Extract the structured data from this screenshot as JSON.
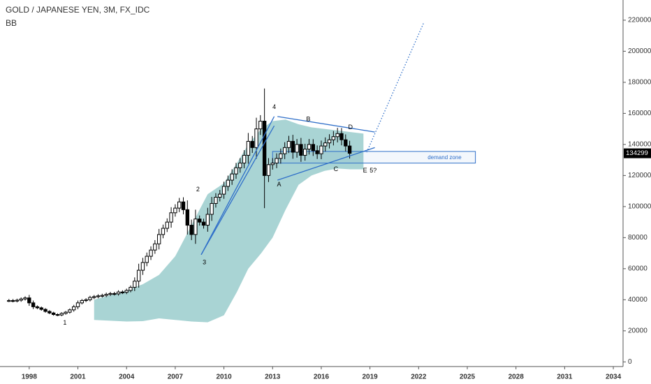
{
  "header": {
    "title": "GOLD / JAPANESE YEN, 3M, FX_IDC",
    "indicator": "BB"
  },
  "colors": {
    "band_fill": "#a9d4d4",
    "line_blue": "#2f6fc9",
    "candle_up": "#ffffff",
    "candle_down": "#000000",
    "axis_text": "#333333",
    "price_tag_bg": "#000000",
    "price_tag_text": "#ffffff"
  },
  "chart_data": {
    "type": "candlestick",
    "title": "GOLD / JAPANESE YEN, 3M, FX_IDC",
    "xlabel": "",
    "ylabel": "",
    "grid": false,
    "xlim": [
      1996.2,
      2034.6
    ],
    "ylim": [
      -3000,
      233000
    ],
    "x_ticks": [
      "1998",
      "2001",
      "2004",
      "2007",
      "2010",
      "2013",
      "2016",
      "2019",
      "2022",
      "2025",
      "2028",
      "2031",
      "2034"
    ],
    "x_tick_values": [
      1998,
      2001,
      2004,
      2007,
      2010,
      2013,
      2016,
      2019,
      2022,
      2025,
      2028,
      2031,
      2034
    ],
    "y_ticks": [
      "0",
      "20000",
      "40000",
      "60000",
      "80000",
      "100000",
      "120000",
      "140000",
      "160000",
      "180000",
      "200000",
      "220000"
    ],
    "y_tick_values": [
      0,
      20000,
      40000,
      60000,
      80000,
      100000,
      120000,
      140000,
      160000,
      180000,
      200000,
      220000
    ],
    "last_price": 134299,
    "last_price_label": "134299",
    "candles_start": 1996.75,
    "candle_step": 0.25,
    "closes": [
      39500,
      39300,
      39700,
      40500,
      41200,
      38000,
      35500,
      34800,
      33800,
      32500,
      31500,
      30500,
      30200,
      31200,
      32000,
      33500,
      35500,
      38000,
      39500,
      40000,
      41500,
      42000,
      42500,
      42800,
      43500,
      44000,
      43800,
      45000,
      44800,
      46000,
      48000,
      52000,
      59000,
      64000,
      68000,
      72000,
      76000,
      82000,
      86000,
      90000,
      96000,
      99000,
      103000,
      98000,
      88000,
      82000,
      92000,
      90000,
      88000,
      95000,
      102000,
      106000,
      108000,
      113000,
      117000,
      121000,
      125000,
      128000,
      133000,
      142000,
      138000,
      150000,
      155000,
      120000,
      127000,
      128000,
      131000,
      134000,
      138000,
      142000,
      135000,
      140000,
      133000,
      137000,
      140000,
      136000,
      134000,
      139000,
      141000,
      143000,
      145000,
      147000,
      143000,
      139000,
      134299
    ],
    "band": {
      "x": [
        2002,
        2003,
        2004,
        2005,
        2006,
        2007,
        2008,
        2009,
        2010,
        2010.8,
        2011.5,
        2012.3,
        2013,
        2013.8,
        2014.6,
        2015.4,
        2016.2,
        2017,
        2017.8,
        2018.6
      ],
      "upper": [
        40000,
        43000,
        46000,
        50000,
        56000,
        68000,
        88000,
        108000,
        115000,
        128000,
        140000,
        150000,
        155000,
        156000,
        153000,
        151000,
        150000,
        149000,
        148000,
        147000
      ],
      "lower": [
        27000,
        26500,
        26000,
        26200,
        28000,
        27000,
        26000,
        25500,
        30000,
        45000,
        60000,
        70000,
        80000,
        98000,
        114000,
        120000,
        123000,
        124500,
        124000,
        124000
      ]
    },
    "annotations": [
      {
        "label": "1",
        "x": 2000.2,
        "y": 25000
      },
      {
        "label": "2",
        "x": 2008.4,
        "y": 111000
      },
      {
        "label": "3",
        "x": 2008.8,
        "y": 64000
      },
      {
        "label": "4",
        "x": 2013.1,
        "y": 164000
      },
      {
        "label": "A",
        "x": 2013.4,
        "y": 114000
      },
      {
        "label": "B",
        "x": 2015.2,
        "y": 156000
      },
      {
        "label": "C",
        "x": 2016.9,
        "y": 124000
      },
      {
        "label": "D",
        "x": 2017.8,
        "y": 151000
      },
      {
        "label": "E",
        "x": 2018.7,
        "y": 123000
      },
      {
        "label": "5?",
        "x": 2019.2,
        "y": 123000
      },
      {
        "label": "demand zone",
        "x": 2023.6,
        "y": 131500
      }
    ],
    "lines": [
      {
        "x": [
          2008.6,
          2013.1
        ],
        "y": [
          69000,
          158000
        ],
        "style": "solid"
      },
      {
        "x": [
          2008.6,
          2013.1
        ],
        "y": [
          69000,
          152000
        ],
        "style": "solid"
      },
      {
        "x": [
          2013.3,
          2019.3
        ],
        "y": [
          158000,
          148000
        ],
        "style": "solid"
      },
      {
        "x": [
          2013.3,
          2019.3
        ],
        "y": [
          117000,
          138000
        ],
        "style": "solid"
      },
      {
        "x": [
          2018.8,
          2022.3
        ],
        "y": [
          135000,
          218000
        ],
        "style": "dotted"
      }
    ],
    "zones": [
      {
        "x": [
          2013.0,
          2025.5
        ],
        "y": [
          128000,
          135500
        ],
        "label": "demand zone"
      }
    ]
  }
}
